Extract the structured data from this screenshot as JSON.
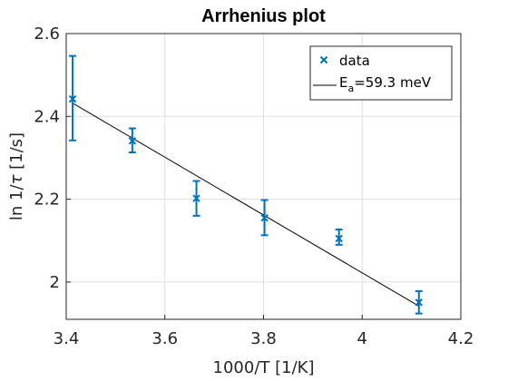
{
  "chart_data": {
    "type": "scatter",
    "title": "Arrhenius plot",
    "xlabel": "1000/T [1/K]",
    "ylabel_prefix": "ln 1/",
    "ylabel_symbol": "τ",
    "ylabel_suffix": " [1/s]",
    "xlim": [
      3.4,
      4.2
    ],
    "ylim": [
      1.91,
      2.6
    ],
    "xticks": [
      3.4,
      3.6,
      3.8,
      4.0,
      4.2
    ],
    "xtick_labels": [
      "3.4",
      "3.6",
      "3.8",
      "4",
      "4.2"
    ],
    "yticks": [
      2.0,
      2.2,
      2.4,
      2.6
    ],
    "ytick_labels": [
      "2",
      "2.2",
      "2.4",
      "2.6"
    ],
    "grid": true,
    "legend_position": "top-right",
    "series": [
      {
        "name": "data",
        "kind": "errorbar",
        "marker": "x",
        "color": "#0072BD",
        "x": [
          3.413,
          3.534,
          3.664,
          3.802,
          3.953,
          4.115
        ],
        "y": [
          2.442,
          2.341,
          2.202,
          2.155,
          2.105,
          1.951
        ],
        "yerr_low": [
          0.1,
          0.028,
          0.042,
          0.042,
          0.015,
          0.027
        ],
        "yerr_high": [
          0.104,
          0.03,
          0.042,
          0.043,
          0.022,
          0.027
        ]
      },
      {
        "name_main": "E",
        "name_sub": "a",
        "name_rest": "=59.3 meV",
        "kind": "line",
        "color": "#000000",
        "x": [
          3.413,
          4.115
        ],
        "y": [
          2.432,
          1.942
        ]
      }
    ]
  }
}
